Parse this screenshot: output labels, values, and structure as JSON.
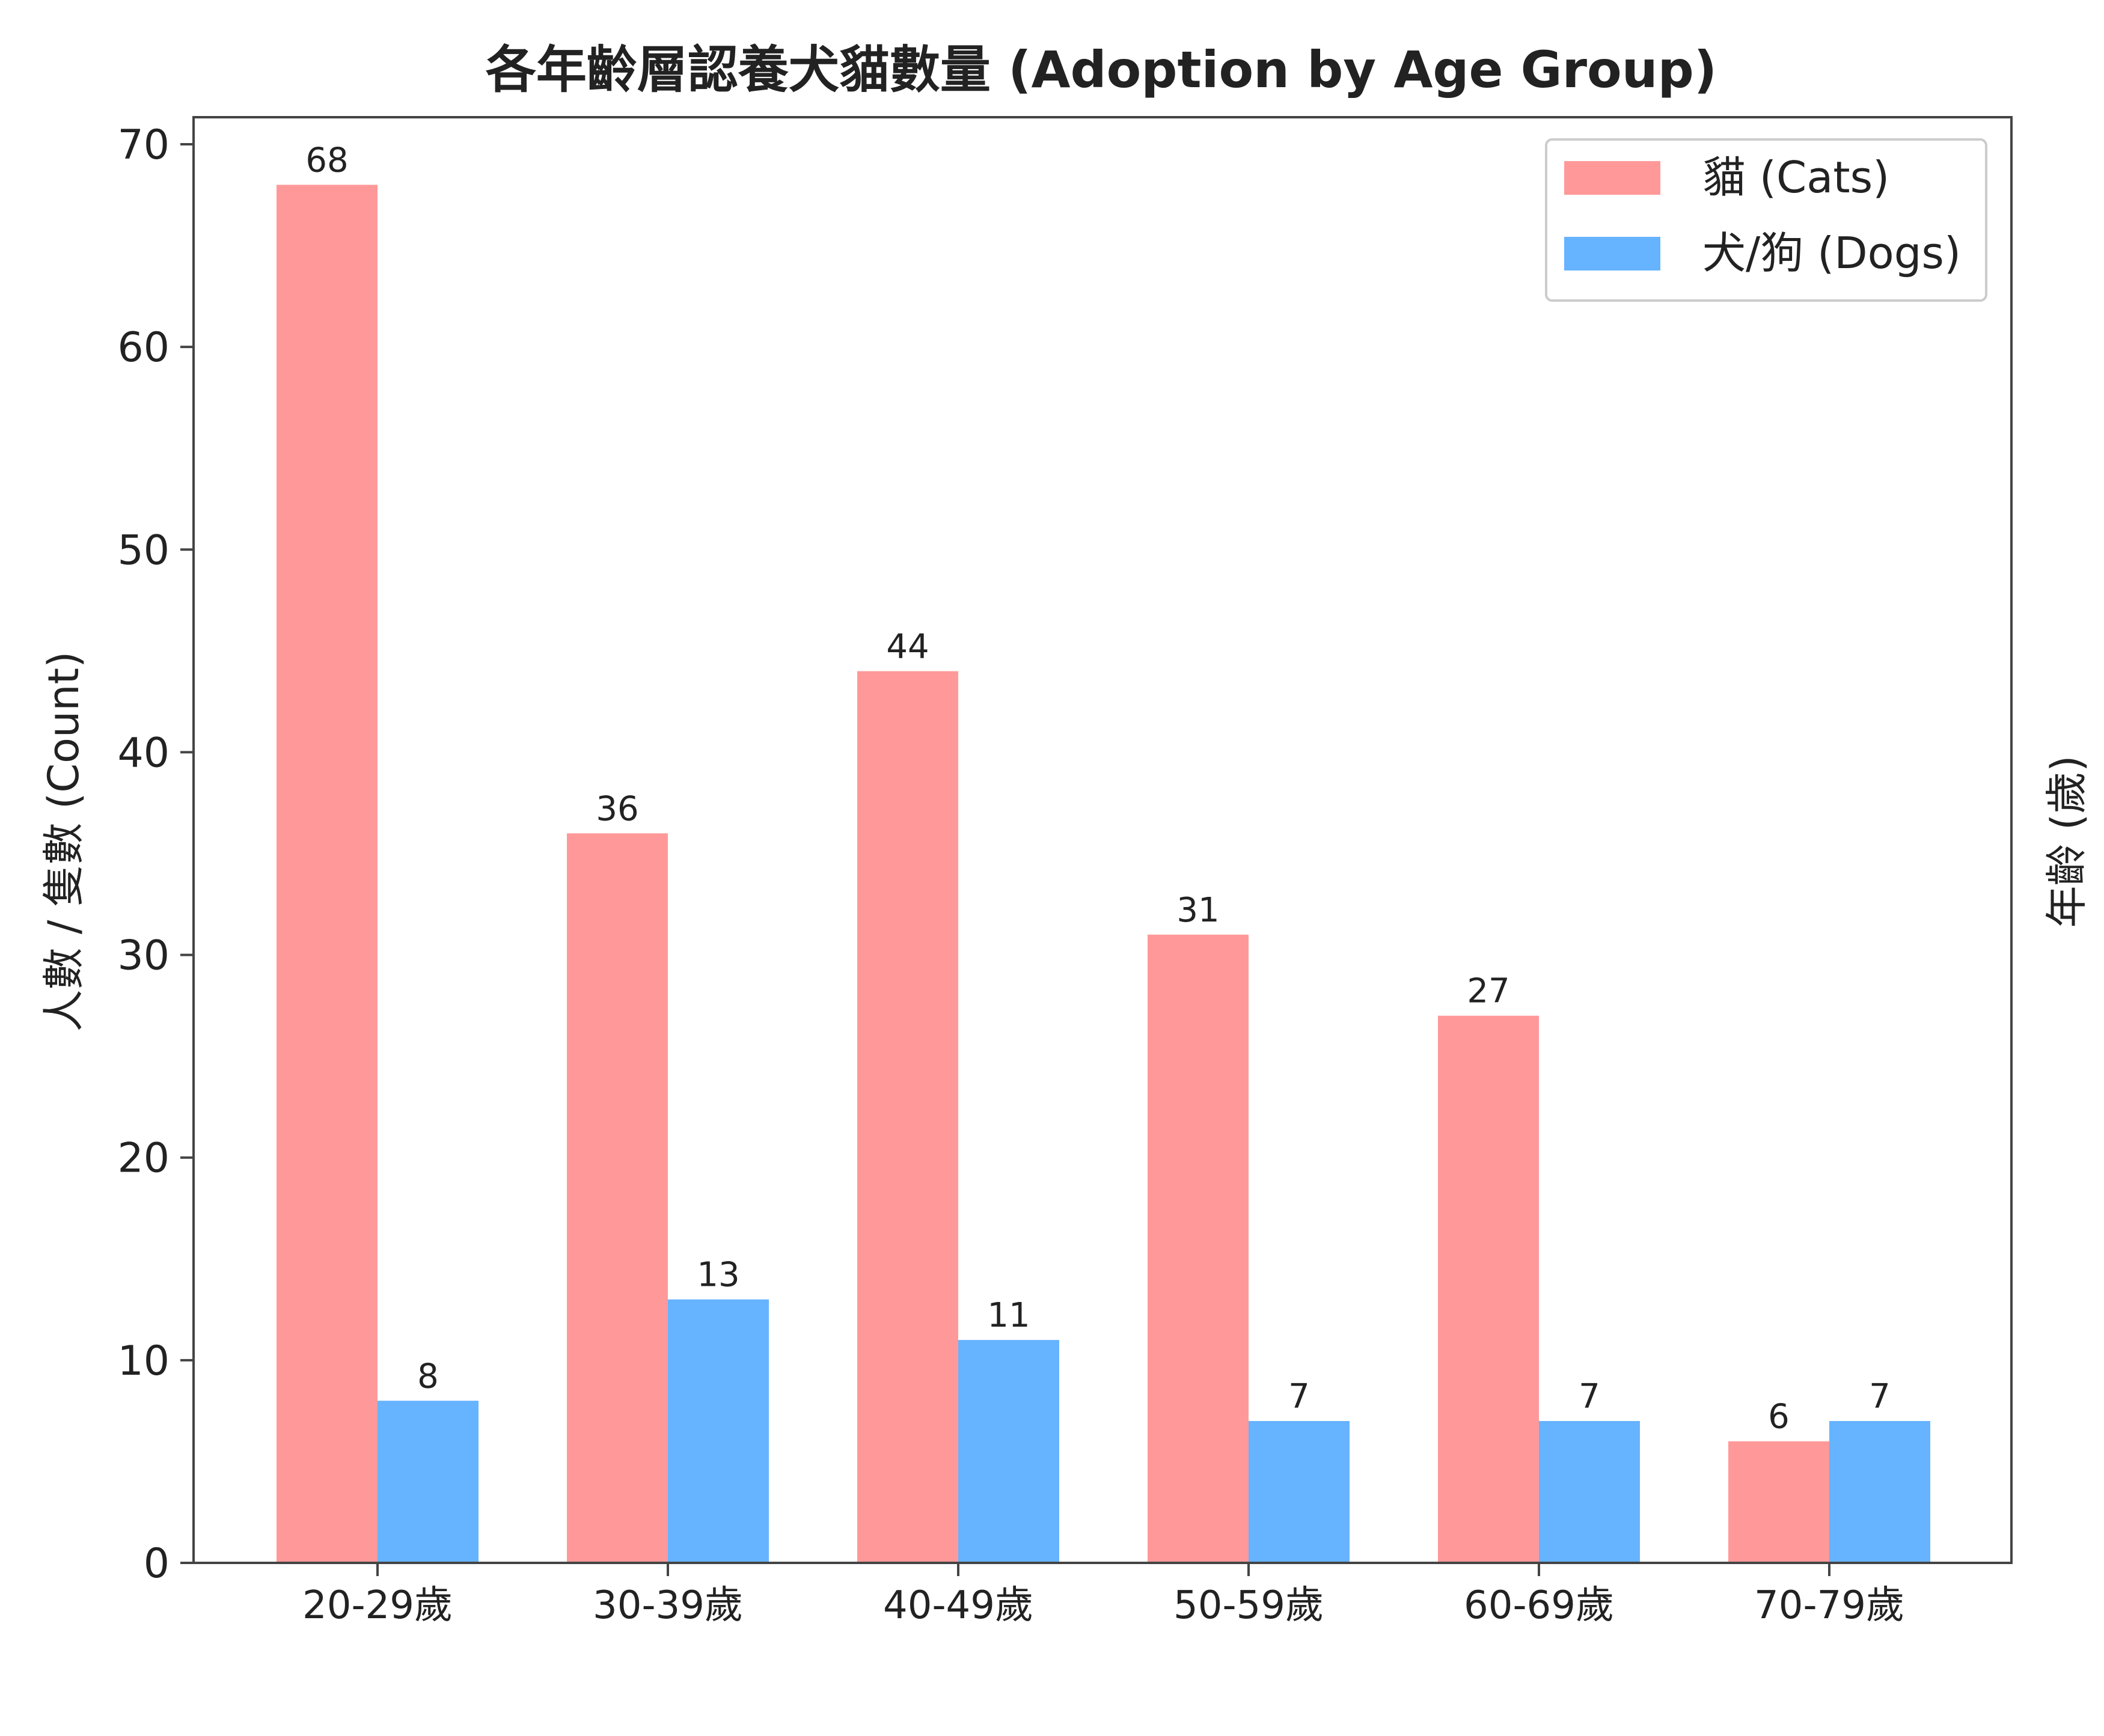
{
  "chart_data": {
    "type": "bar",
    "title": "各年齡層認養犬貓數量 (Adoption by Age Group)",
    "ylabel": "人數 / 隻數 (Count)",
    "xlabel": "",
    "right_label": "年齡 (歲)",
    "categories": [
      "20-29歲",
      "30-39歲",
      "40-49歲",
      "50-59歲",
      "60-69歲",
      "70-79歲"
    ],
    "series": [
      {
        "name": "貓 (Cats)",
        "color": "#ff9999",
        "values": [
          68,
          36,
          44,
          31,
          27,
          6
        ]
      },
      {
        "name": "犬/狗 (Dogs)",
        "color": "#66b3ff",
        "values": [
          8,
          13,
          11,
          7,
          7,
          7
        ]
      }
    ],
    "ylim": [
      0,
      70
    ],
    "yticks": [
      0,
      10,
      20,
      30,
      40,
      50,
      60,
      70
    ],
    "grid": false,
    "legend_position": "top-right",
    "data_labels": true
  }
}
